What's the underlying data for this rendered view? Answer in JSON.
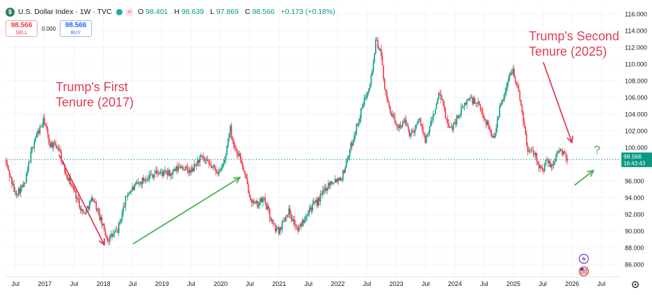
{
  "header": {
    "symbol_badge": "$",
    "title": "U.S. Dollar Index · 1W · TVC",
    "indicator_glyph": "≈",
    "ohlc": [
      {
        "label": "O",
        "value": "98.401"
      },
      {
        "label": "H",
        "value": "98.639"
      },
      {
        "label": "L",
        "value": "97.869"
      },
      {
        "label": "C",
        "value": "98.566"
      }
    ],
    "change": "+0.173 (+0.18%)"
  },
  "trade": {
    "sell_price": "98.566",
    "sell_label": "SELL",
    "spread": "0.000",
    "buy_price": "98.566",
    "buy_label": "BUY"
  },
  "price_tag": {
    "price": "98.566",
    "countdown": "16:43:43"
  },
  "colors": {
    "up": "#089981",
    "down": "#f23645",
    "annotation": "#e03c55",
    "arrow_green": "#4caf50",
    "last_price": "#089981"
  },
  "icons": [
    "flash-icon",
    "us-flag-icon",
    "gear-icon"
  ],
  "chart_data": {
    "type": "candlestick",
    "interval": "weekly",
    "last_close": 98.566,
    "ylim": [
      84.5,
      117
    ],
    "y_ticks": [
      "86.000",
      "88.000",
      "90.000",
      "92.000",
      "94.000",
      "96.000",
      "98.000",
      "100.000",
      "102.000",
      "104.000",
      "106.000",
      "108.000",
      "110.000",
      "112.000",
      "114.000",
      "116.000"
    ],
    "x_ticks": [
      "Jul",
      "2017",
      "Jul",
      "2018",
      "Jul",
      "2019",
      "Jul",
      "2020",
      "Jul",
      "2021",
      "Jul",
      "2022",
      "Jul",
      "2023",
      "Jul",
      "2024",
      "Jul",
      "2025",
      "Jul",
      "2026",
      "Jul"
    ],
    "path_points": [
      [
        "2016-05",
        98.5
      ],
      [
        "2016-07",
        94.5
      ],
      [
        "2016-09",
        95.5
      ],
      [
        "2016-10",
        98.5
      ],
      [
        "2016-11",
        101.0
      ],
      [
        "2017-01",
        103.3
      ],
      [
        "2017-02",
        100.5
      ],
      [
        "2017-04",
        100.0
      ],
      [
        "2017-05",
        97.5
      ],
      [
        "2017-07",
        95.0
      ],
      [
        "2017-09",
        92.0
      ],
      [
        "2017-11",
        94.0
      ],
      [
        "2018-01",
        90.5
      ],
      [
        "2018-02",
        89.0
      ],
      [
        "2018-04",
        90.0
      ],
      [
        "2018-06",
        94.5
      ],
      [
        "2018-08",
        95.5
      ],
      [
        "2018-10",
        96.5
      ],
      [
        "2018-12",
        97.0
      ],
      [
        "2019-03",
        96.8
      ],
      [
        "2019-05",
        97.8
      ],
      [
        "2019-07",
        97.0
      ],
      [
        "2019-09",
        98.8
      ],
      [
        "2019-11",
        97.8
      ],
      [
        "2020-01",
        97.0
      ],
      [
        "2020-02",
        98.5
      ],
      [
        "2020-03",
        102.5
      ],
      [
        "2020-04",
        100.0
      ],
      [
        "2020-05",
        99.0
      ],
      [
        "2020-07",
        94.5
      ],
      [
        "2020-08",
        93.0
      ],
      [
        "2020-10",
        93.8
      ],
      [
        "2020-12",
        90.5
      ],
      [
        "2021-01",
        90.0
      ],
      [
        "2021-03",
        92.5
      ],
      [
        "2021-05",
        90.0
      ],
      [
        "2021-07",
        92.5
      ],
      [
        "2021-09",
        93.5
      ],
      [
        "2021-11",
        95.5
      ],
      [
        "2021-12",
        96.0
      ],
      [
        "2022-02",
        96.5
      ],
      [
        "2022-04",
        100.5
      ],
      [
        "2022-06",
        104.5
      ],
      [
        "2022-08",
        108.5
      ],
      [
        "2022-09",
        113.0
      ],
      [
        "2022-10",
        111.0
      ],
      [
        "2022-11",
        106.0
      ],
      [
        "2023-01",
        102.5
      ],
      [
        "2023-03",
        103.0
      ],
      [
        "2023-04",
        101.5
      ],
      [
        "2023-06",
        103.5
      ],
      [
        "2023-07",
        100.5
      ],
      [
        "2023-10",
        106.5
      ],
      [
        "2023-12",
        102.0
      ],
      [
        "2024-02",
        104.0
      ],
      [
        "2024-04",
        106.0
      ],
      [
        "2024-06",
        105.0
      ],
      [
        "2024-08",
        102.5
      ],
      [
        "2024-09",
        101.0
      ],
      [
        "2024-10",
        104.0
      ],
      [
        "2024-12",
        108.0
      ],
      [
        "2025-01",
        109.5
      ],
      [
        "2025-02",
        107.0
      ],
      [
        "2025-03",
        104.0
      ],
      [
        "2025-04",
        99.5
      ],
      [
        "2025-05",
        100.0
      ],
      [
        "2025-07",
        97.0
      ],
      [
        "2025-08",
        98.5
      ],
      [
        "2025-09",
        97.5
      ],
      [
        "2025-10",
        99.5
      ],
      [
        "2025-11",
        99.5
      ],
      [
        "2025-12",
        98.566
      ]
    ],
    "annotations": [
      {
        "text_lines": [
          "Trump's First",
          "Tenure (2017)"
        ]
      },
      {
        "text_lines": [
          "Trump's Second",
          "Tenure (2025)"
        ]
      },
      {
        "text_lines": [
          "?"
        ]
      }
    ]
  }
}
